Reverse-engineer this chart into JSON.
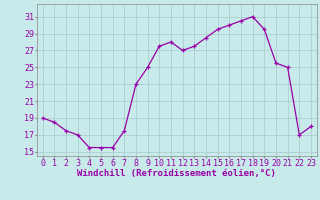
{
  "x": [
    0,
    1,
    2,
    3,
    4,
    5,
    6,
    7,
    8,
    9,
    10,
    11,
    12,
    13,
    14,
    15,
    16,
    17,
    18,
    19,
    20,
    21,
    22,
    23
  ],
  "y": [
    19,
    18.5,
    17.5,
    17,
    15.5,
    15.5,
    15.5,
    17.5,
    23,
    25,
    27.5,
    28,
    27,
    27.5,
    28.5,
    29.5,
    30,
    30.5,
    31,
    29.5,
    25.5,
    25,
    17,
    18
  ],
  "line_color": "#9900aa",
  "marker": "+",
  "bg_color": "#c8eaea",
  "grid_color": "#a8caca",
  "xlabel": "Windchill (Refroidissement éolien,°C)",
  "xlim": [
    -0.5,
    23.5
  ],
  "ylim": [
    14.5,
    32.5
  ],
  "yticks": [
    15,
    17,
    19,
    21,
    23,
    25,
    27,
    29,
    31
  ],
  "xticks": [
    0,
    1,
    2,
    3,
    4,
    5,
    6,
    7,
    8,
    9,
    10,
    11,
    12,
    13,
    14,
    15,
    16,
    17,
    18,
    19,
    20,
    21,
    22,
    23
  ],
  "xlabel_fontsize": 6.5,
  "tick_fontsize": 6,
  "line_width": 0.9,
  "marker_size": 2.5
}
